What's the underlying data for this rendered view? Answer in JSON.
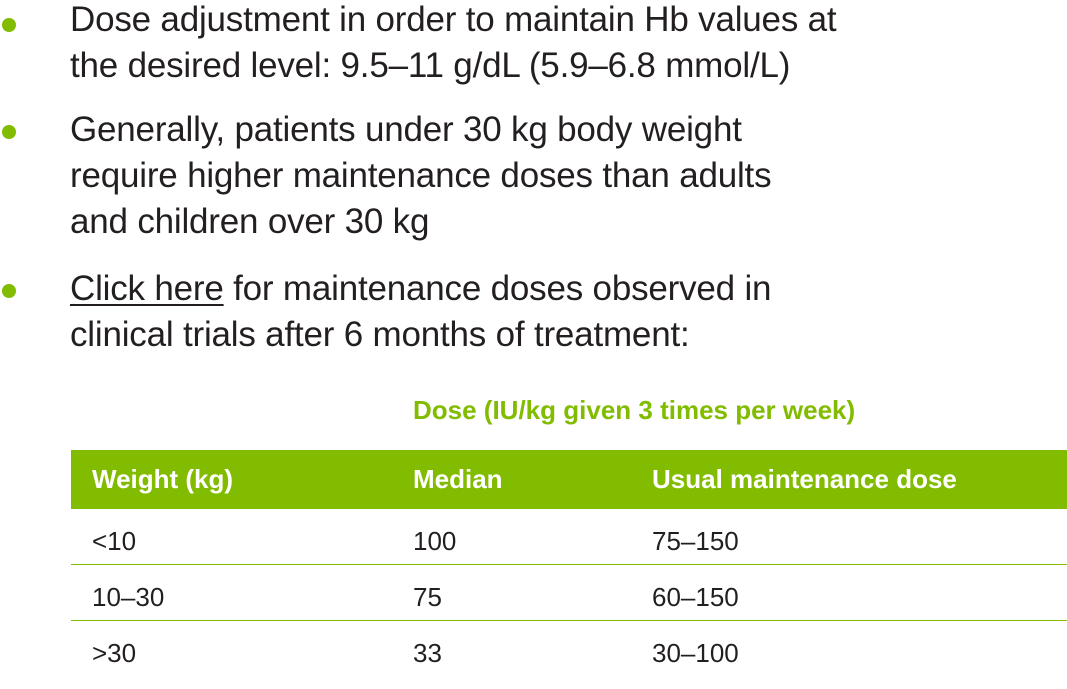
{
  "accent_color": "#82bc00",
  "bullets": [
    {
      "lines": [
        "Dose adjustment in order to maintain Hb values at",
        "the desired level: 9.5–11 g/dL (5.9–6.8 mmol/L)"
      ]
    },
    {
      "lines": [
        "Generally, patients under 30 kg body weight",
        "require higher maintenance doses than adults",
        "and children over 30 kg"
      ]
    },
    {
      "link_text": "Click here",
      "line1_rest": " for maintenance doses observed in",
      "line2": "clinical trials after 6 months of treatment:"
    }
  ],
  "table": {
    "caption": "Dose (IU/kg given 3 times per week)",
    "headers": [
      "Weight (kg)",
      "Median",
      "Usual maintenance dose"
    ],
    "rows": [
      [
        "<10",
        "100",
        "75–150"
      ],
      [
        "10–30",
        "75",
        "60–150"
      ],
      [
        ">30",
        "33",
        "30–100"
      ]
    ]
  }
}
